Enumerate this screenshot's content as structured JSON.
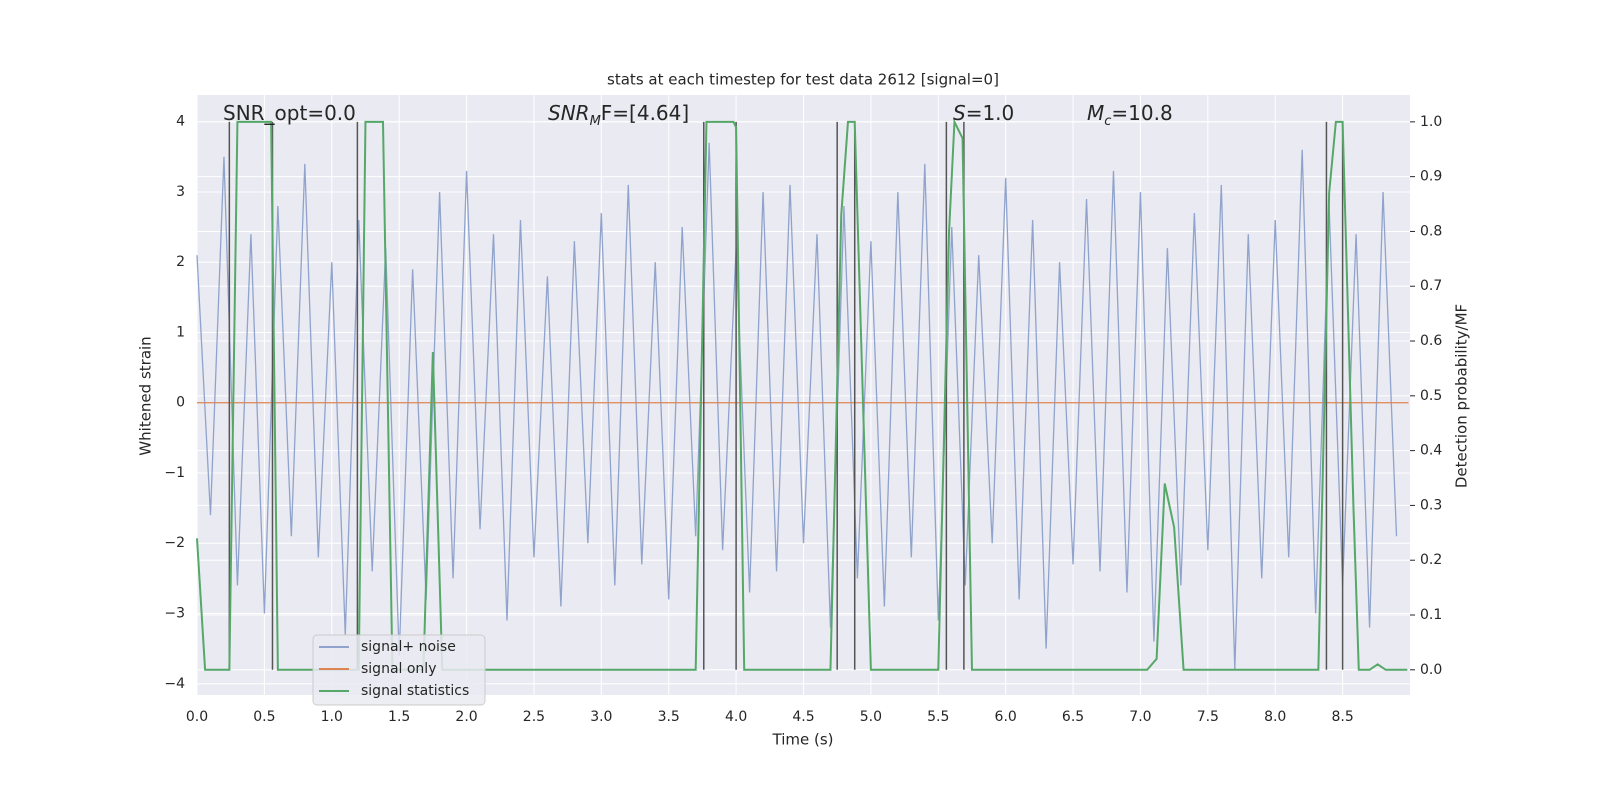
{
  "chart_data": {
    "type": "line",
    "title": "stats at each timestep for test data 2612 [signal=0]",
    "x_label": "Time (s)",
    "y_label": "Whitened strain",
    "y2_label": "Detection probability/MF",
    "xlim": [
      0,
      9.0
    ],
    "ylim": [
      -4.16,
      4.38
    ],
    "y2lim": [
      -0.046,
      1.049
    ],
    "xticks": [
      {
        "value": 0,
        "label": "0.0"
      },
      0.5,
      {
        "value": 1,
        "label": "1.0"
      },
      1.5,
      {
        "value": 2,
        "label": "2.0"
      },
      2.5,
      {
        "value": 3,
        "label": "3.0"
      },
      3.5,
      {
        "value": 4,
        "label": "4.0"
      },
      4.5,
      {
        "value": 5,
        "label": "5.0"
      },
      5.5,
      {
        "value": 6,
        "label": "6.0"
      },
      6.5,
      {
        "value": 7,
        "label": "7.0"
      },
      7.5,
      {
        "value": 8,
        "label": "8.0"
      },
      8.5
    ],
    "yticks": [
      {
        "value": -4,
        "label": "−4"
      },
      {
        "value": -3,
        "label": "−3"
      },
      {
        "value": -2,
        "label": "−2"
      },
      {
        "value": -1,
        "label": "−1"
      },
      0,
      1,
      2,
      3,
      4
    ],
    "y2ticks": [
      {
        "value": 0,
        "label": "0.0"
      },
      0.1,
      0.2,
      0.3,
      0.4,
      0.5,
      0.6,
      0.7,
      0.8,
      0.9,
      {
        "value": 1,
        "label": "1.0"
      }
    ],
    "grid": true,
    "legend": "lower left",
    "annotations": [
      [
        {
          "text": "SNR_opt=0.0"
        }
      ],
      [
        {
          "text": "SNR",
          "italic": true
        },
        {
          "text": "M",
          "italic": true,
          "sub": true
        },
        {
          "text": "F=[4.64]"
        }
      ],
      [
        {
          "text": "S",
          "italic": true
        },
        {
          "text": "=1.0"
        }
      ],
      [
        {
          "text": "M",
          "italic": true
        },
        {
          "text": "c",
          "italic": true,
          "sub": true
        },
        {
          "text": "=10.8"
        }
      ]
    ],
    "vlines": [
      0.24,
      0.56,
      1.19,
      3.76,
      4.0,
      4.75,
      4.88,
      5.56,
      5.69,
      8.38,
      8.5
    ],
    "vline_color": "#555555",
    "series": [
      {
        "name": "signal+ noise",
        "color": "#8fa3cc",
        "x": [
          0.0,
          0.1,
          0.2,
          0.3,
          0.4,
          0.5,
          0.6,
          0.7,
          0.8,
          0.9,
          1.0,
          1.1,
          1.2,
          1.3,
          1.4,
          1.5,
          1.6,
          1.7,
          1.8,
          1.9,
          2.0,
          2.1,
          2.2,
          2.3,
          2.4,
          2.5,
          2.6,
          2.7,
          2.8,
          2.9,
          3.0,
          3.1,
          3.2,
          3.3,
          3.4,
          3.5,
          3.6,
          3.7,
          3.8,
          3.9,
          4.0,
          4.1,
          4.2,
          4.3,
          4.4,
          4.5,
          4.6,
          4.7,
          4.8,
          4.9,
          5.0,
          5.1,
          5.2,
          5.3,
          5.4,
          5.5,
          5.6,
          5.7,
          5.8,
          5.9,
          6.0,
          6.1,
          6.2,
          6.3,
          6.4,
          6.5,
          6.6,
          6.7,
          6.8,
          6.9,
          7.0,
          7.1,
          7.2,
          7.3,
          7.4,
          7.5,
          7.6,
          7.7,
          7.8,
          7.9,
          8.0,
          8.1,
          8.2,
          8.3,
          8.4,
          8.5,
          8.6,
          8.7,
          8.8,
          8.9
        ],
        "values": [
          2.1,
          -1.6,
          3.5,
          -2.6,
          2.4,
          -3.0,
          2.8,
          -1.9,
          3.4,
          -2.2,
          2.0,
          -3.3,
          2.6,
          -2.4,
          2.2,
          -3.6,
          1.9,
          -2.8,
          3.0,
          -2.5,
          3.3,
          -1.8,
          2.4,
          -3.1,
          2.6,
          -2.2,
          1.8,
          -2.9,
          2.3,
          -2.0,
          2.7,
          -2.6,
          3.1,
          -2.3,
          2.0,
          -2.8,
          2.5,
          -1.9,
          3.7,
          -2.1,
          2.2,
          -2.7,
          3.0,
          -2.4,
          3.1,
          -2.0,
          2.4,
          -3.2,
          2.8,
          -2.5,
          2.3,
          -2.9,
          3.0,
          -2.2,
          3.4,
          -3.1,
          2.5,
          -2.6,
          2.1,
          -2.0,
          3.2,
          -2.8,
          2.6,
          -3.5,
          2.0,
          -2.3,
          2.9,
          -2.4,
          3.3,
          -2.7,
          3.0,
          -3.4,
          2.2,
          -2.6,
          2.7,
          -2.1,
          3.1,
          -3.8,
          2.4,
          -2.5,
          2.6,
          -2.2,
          3.6,
          -3.0,
          2.8,
          -2.6,
          2.4,
          -3.2,
          3.0,
          -1.9
        ]
      },
      {
        "name": "signal only",
        "color": "#dd8452",
        "x": [
          0.0,
          8.99
        ],
        "values": [
          0,
          0
        ]
      },
      {
        "name": "signal statistics",
        "color": "#55a868",
        "axis": "y2",
        "x": [
          0.0,
          0.06,
          0.24,
          0.3,
          0.55,
          0.6,
          1.2,
          1.25,
          1.38,
          1.45,
          1.68,
          1.75,
          1.82,
          3.7,
          3.78,
          3.98,
          4.0,
          4.06,
          4.7,
          4.78,
          4.83,
          4.88,
          5.0,
          5.5,
          5.58,
          5.62,
          5.68,
          5.75,
          7.05,
          7.12,
          7.18,
          7.25,
          7.32,
          8.32,
          8.4,
          8.45,
          8.5,
          8.58,
          8.62,
          8.7,
          8.76,
          8.82,
          8.98
        ],
        "values": [
          0.24,
          0,
          0,
          1.0,
          1.0,
          0,
          0,
          1.0,
          1.0,
          0,
          0,
          0.58,
          0,
          0,
          1.0,
          1.0,
          0.99,
          0,
          0,
          0.83,
          1.0,
          1.0,
          0,
          0,
          0.8,
          1.0,
          0.97,
          0,
          0,
          0.02,
          0.34,
          0.26,
          0,
          0,
          0.87,
          1.0,
          1.0,
          0.3,
          0,
          0,
          0.01,
          0,
          0
        ]
      }
    ]
  }
}
